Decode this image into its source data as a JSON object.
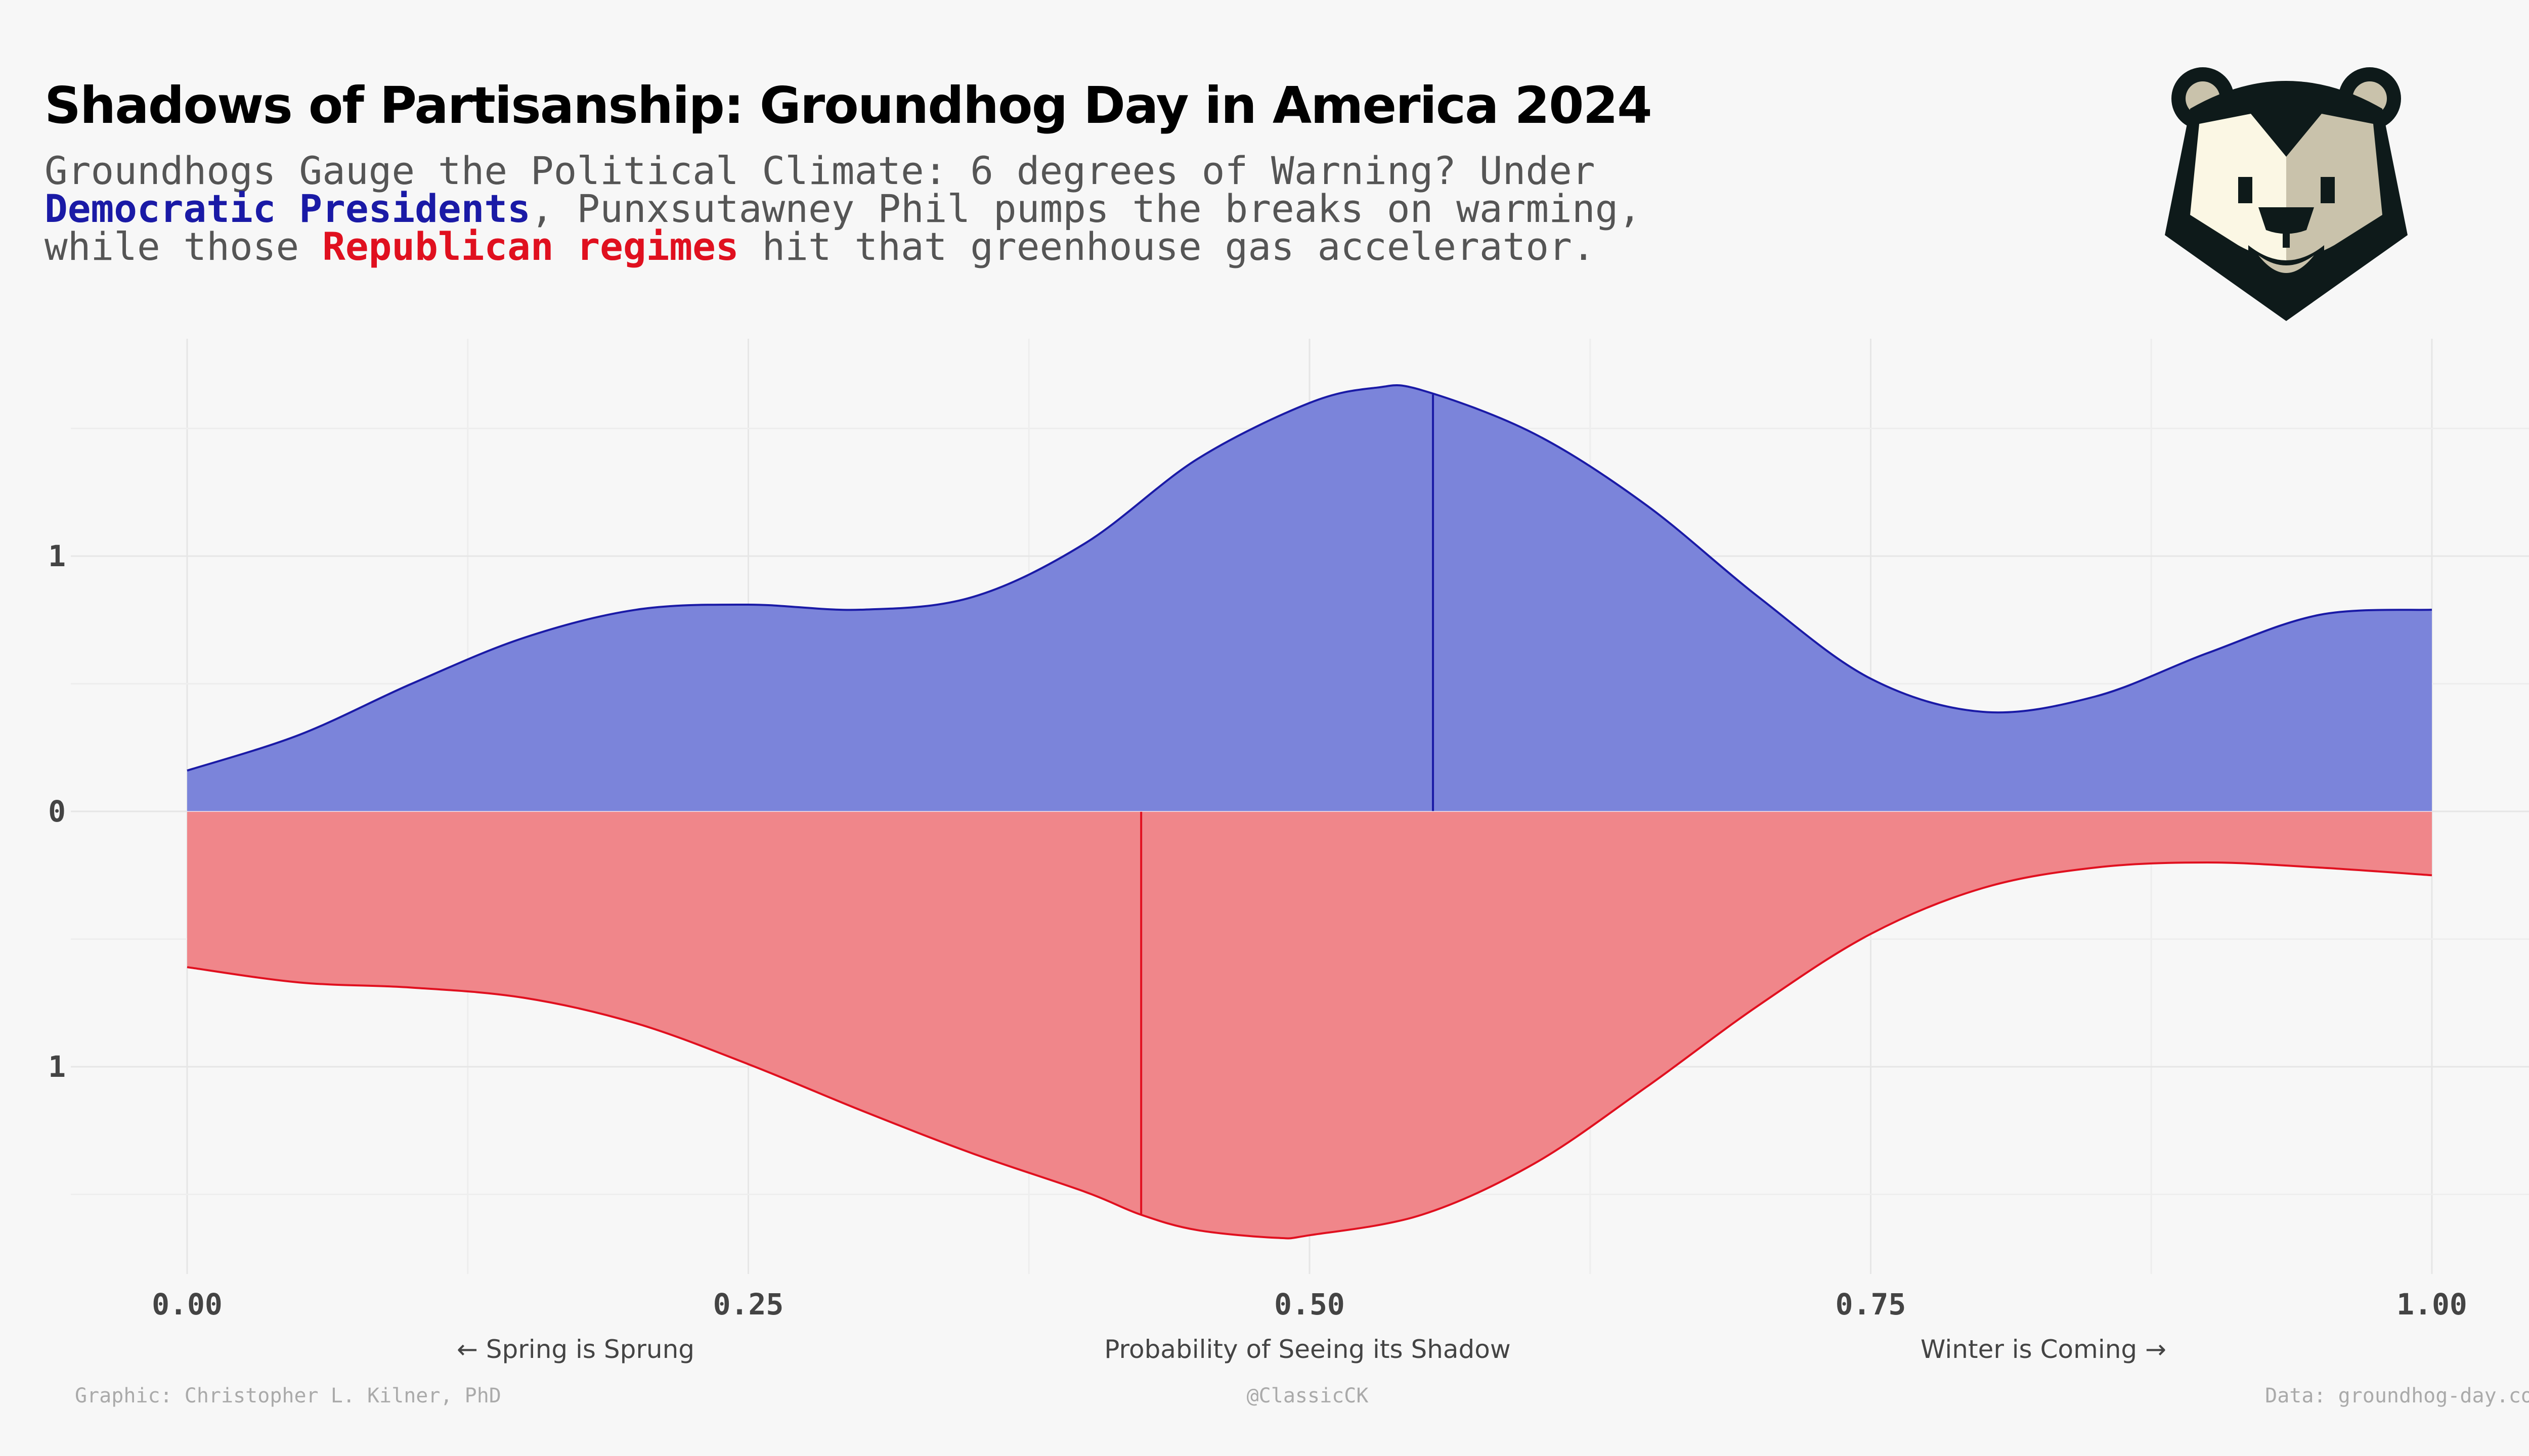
{
  "title": "Shadows of Partisanship: Groundhog Day in America 2024",
  "subtitle": {
    "line1": "Groundhogs Gauge the Political Climate: 6 degrees of Warning? Under",
    "line2_dem": "Democratic Presidents",
    "line2_rest": ", Punxsutawney Phil pumps the breaks on warming,",
    "line3_pre": "while those ",
    "line3_rep": "Republican regimes",
    "line3_post": " hit that greenhouse gas accelerator."
  },
  "colors": {
    "democratic": "#1a1aa6",
    "democratic_fill": "#7b84da",
    "republican": "#e0101f",
    "republican_fill": "#f0868a",
    "background": "#f7f7f7"
  },
  "logo_icon": "groundhog-face-icon",
  "x_captions": {
    "left": "← Spring is Sprung",
    "center": "Probability of Seeing its Shadow",
    "right": "Winter is Coming →"
  },
  "captions": {
    "left": "Graphic: Christopher L. Kilner, PhD",
    "center": "@ClassicCK",
    "right": "Data: groundhog-day.com"
  },
  "chart_data": {
    "type": "area",
    "title": "",
    "xlabel": "Probability of Seeing its Shadow",
    "ylabel": "",
    "xlim": [
      0,
      1
    ],
    "ylim": [
      -1.8,
      1.8
    ],
    "xticks": [
      "0.00",
      "0.25",
      "0.50",
      "0.75",
      "1.00"
    ],
    "xtick_values": [
      0,
      0.25,
      0.5,
      0.75,
      1
    ],
    "yticks": [
      "1",
      "0",
      "1"
    ],
    "ytick_values": [
      1,
      0,
      -1
    ],
    "grid": true,
    "legend": "in subtitle text",
    "series": [
      {
        "name": "Democratic Presidents",
        "direction": "up",
        "x": [
          0,
          0.05,
          0.1,
          0.15,
          0.2,
          0.25,
          0.3,
          0.35,
          0.4,
          0.45,
          0.5,
          0.53,
          0.55,
          0.6,
          0.65,
          0.7,
          0.75,
          0.8,
          0.85,
          0.9,
          0.95,
          1.0
        ],
        "density": [
          0.16,
          0.3,
          0.5,
          0.68,
          0.79,
          0.81,
          0.79,
          0.84,
          1.05,
          1.38,
          1.6,
          1.66,
          1.65,
          1.48,
          1.2,
          0.84,
          0.52,
          0.39,
          0.45,
          0.62,
          0.77,
          0.79
        ],
        "median": 0.555
      },
      {
        "name": "Republican regimes",
        "direction": "down",
        "x": [
          0,
          0.05,
          0.1,
          0.15,
          0.2,
          0.25,
          0.3,
          0.35,
          0.4,
          0.425,
          0.45,
          0.485,
          0.5,
          0.55,
          0.6,
          0.65,
          0.7,
          0.75,
          0.8,
          0.85,
          0.9,
          0.95,
          1.0
        ],
        "density": [
          0.61,
          0.67,
          0.69,
          0.73,
          0.83,
          0.99,
          1.17,
          1.34,
          1.49,
          1.58,
          1.64,
          1.67,
          1.66,
          1.58,
          1.38,
          1.08,
          0.76,
          0.48,
          0.3,
          0.22,
          0.2,
          0.22,
          0.25
        ],
        "median": 0.425
      }
    ]
  }
}
